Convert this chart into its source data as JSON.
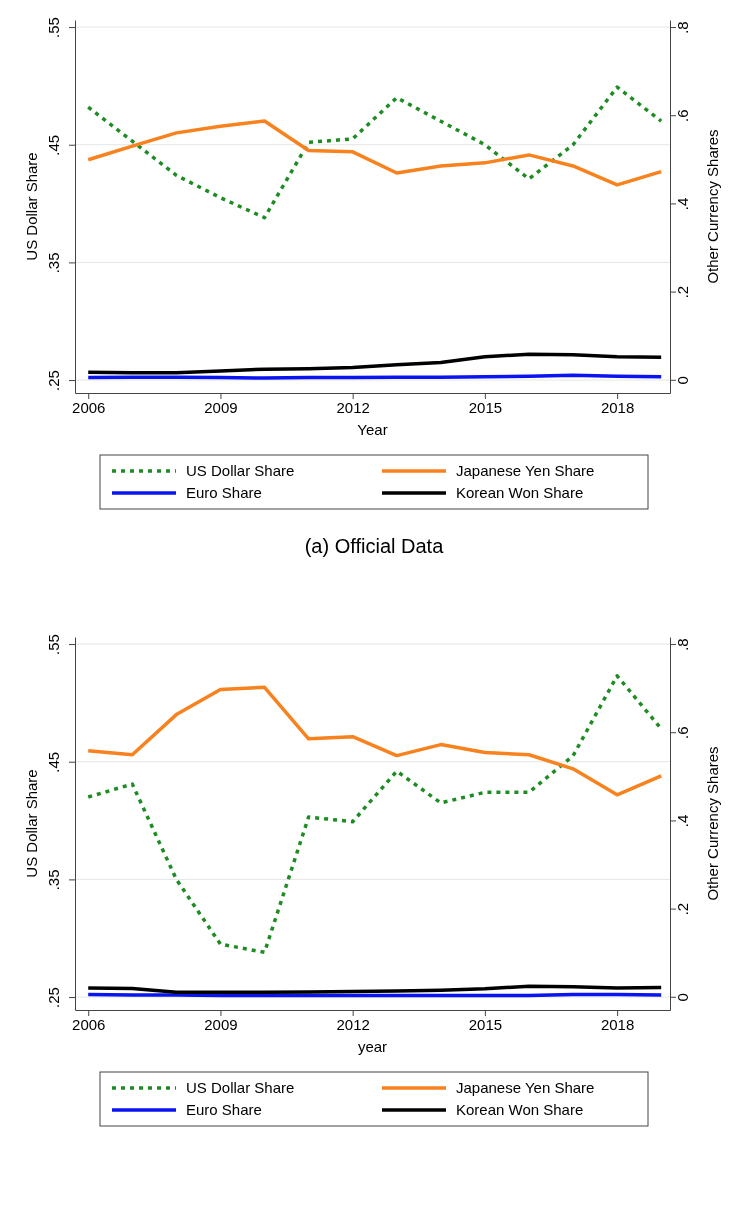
{
  "chart_data": [
    {
      "type": "line",
      "title": "(a) Official Data",
      "xlabel": "Year",
      "ylabel": "US Dollar Share",
      "y2label": "Other Currency Shares",
      "x": [
        2006,
        2007,
        2008,
        2009,
        2010,
        2011,
        2012,
        2013,
        2014,
        2015,
        2016,
        2017,
        2018,
        2019
      ],
      "xlim": [
        2005.7,
        2019.2
      ],
      "xticks": [
        2006,
        2009,
        2012,
        2015,
        2018
      ],
      "ylim": [
        0.239,
        0.556
      ],
      "yticks": [
        {
          "value": 0.25,
          "label": ".25"
        },
        {
          "value": 0.35,
          "label": ".35"
        },
        {
          "value": 0.45,
          "label": ".45"
        },
        {
          "value": 0.55,
          "label": ".55"
        }
      ],
      "y2lim": [
        -0.03,
        0.816
      ],
      "y2ticks": [
        0,
        {
          "value": 0.2,
          "label": ".2"
        },
        {
          "value": 0.4,
          "label": ".4"
        },
        {
          "value": 0.6,
          "label": ".6"
        },
        {
          "value": 0.8,
          "label": ".8"
        }
      ],
      "grid": "y",
      "legend": "bottom",
      "series": [
        {
          "name": "US Dollar Share",
          "color": "#1e8c23",
          "line_style": "dotted",
          "values": [
            0.482,
            0.453,
            0.424,
            0.405,
            0.388,
            0.452,
            0.455,
            0.49,
            0.47,
            0.45,
            0.421,
            0.45,
            0.499,
            0.47
          ]
        },
        {
          "name": "Japanese Yen Share",
          "color": "#f7821e",
          "axis": "y2",
          "values": [
            0.499,
            0.53,
            0.56,
            0.575,
            0.587,
            0.52,
            0.517,
            0.469,
            0.485,
            0.492,
            0.51,
            0.485,
            0.442,
            0.472
          ]
        },
        {
          "name": "Euro Share",
          "color": "#0a14f0",
          "axis": "y2",
          "values": [
            0.005,
            0.006,
            0.006,
            0.005,
            0.004,
            0.005,
            0.005,
            0.006,
            0.006,
            0.007,
            0.008,
            0.01,
            0.008,
            0.007
          ]
        },
        {
          "name": "Korean Won Share",
          "color": "#000000",
          "axis": "y2",
          "values": [
            0.017,
            0.016,
            0.016,
            0.02,
            0.024,
            0.025,
            0.028,
            0.034,
            0.039,
            0.052,
            0.058,
            0.057,
            0.052,
            0.051
          ]
        }
      ]
    },
    {
      "type": "line",
      "xlabel": "year",
      "ylabel": "US Dollar Share",
      "y2label": "Other Currency Shares",
      "x": [
        2006,
        2007,
        2008,
        2009,
        2010,
        2011,
        2012,
        2013,
        2014,
        2015,
        2016,
        2017,
        2018,
        2019
      ],
      "xlim": [
        2005.7,
        2019.2
      ],
      "xticks": [
        2006,
        2009,
        2012,
        2015,
        2018
      ],
      "ylim": [
        0.239,
        0.556
      ],
      "yticks": [
        {
          "value": 0.25,
          "label": ".25"
        },
        {
          "value": 0.35,
          "label": ".35"
        },
        {
          "value": 0.45,
          "label": ".45"
        },
        {
          "value": 0.55,
          "label": ".55"
        }
      ],
      "y2lim": [
        -0.03,
        0.816
      ],
      "y2ticks": [
        0,
        {
          "value": 0.2,
          "label": ".2"
        },
        {
          "value": 0.4,
          "label": ".4"
        },
        {
          "value": 0.6,
          "label": ".6"
        },
        {
          "value": 0.8,
          "label": ".8"
        }
      ],
      "grid": "y",
      "legend": "bottom",
      "series": [
        {
          "name": "US Dollar Share",
          "color": "#1e8c23",
          "line_style": "dotted",
          "values": [
            0.42,
            0.431,
            0.35,
            0.295,
            0.288,
            0.403,
            0.399,
            0.442,
            0.415,
            0.424,
            0.424,
            0.455,
            0.523,
            0.478
          ]
        },
        {
          "name": "Japanese Yen Share",
          "color": "#f7821e",
          "axis": "y2",
          "values": [
            0.558,
            0.549,
            0.64,
            0.697,
            0.702,
            0.585,
            0.59,
            0.547,
            0.572,
            0.554,
            0.549,
            0.517,
            0.458,
            0.501
          ]
        },
        {
          "name": "Euro Share",
          "color": "#0a14f0",
          "axis": "y2",
          "values": [
            0.005,
            0.004,
            0.004,
            0.003,
            0.003,
            0.003,
            0.003,
            0.003,
            0.003,
            0.003,
            0.003,
            0.005,
            0.005,
            0.004
          ]
        },
        {
          "name": "Korean Won Share",
          "color": "#000000",
          "axis": "y2",
          "values": [
            0.02,
            0.019,
            0.01,
            0.01,
            0.01,
            0.011,
            0.012,
            0.013,
            0.015,
            0.018,
            0.024,
            0.023,
            0.02,
            0.021
          ]
        }
      ]
    }
  ]
}
